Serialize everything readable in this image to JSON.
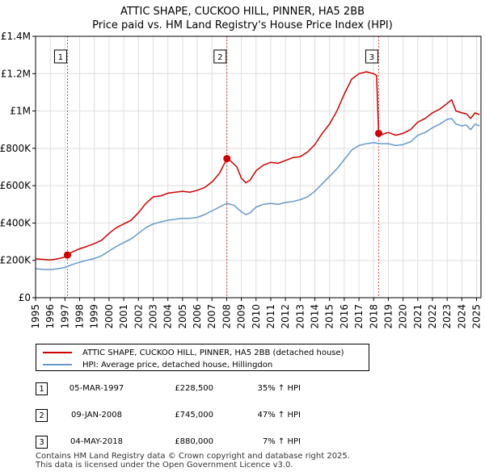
{
  "title": {
    "line1": "ATTIC SHAPE, CUCKOO HILL, PINNER, HA5 2BB",
    "line2": "Price paid vs. HM Land Registry's House Price Index (HPI)"
  },
  "chart_data": {
    "type": "line",
    "title": "ATTIC SHAPE, CUCKOO HILL, PINNER, HA5 2BB — Price paid vs. HM Land Registry's House Price Index (HPI)",
    "xlim": [
      1995,
      2025.3
    ],
    "ylim": [
      0,
      1400000
    ],
    "x_ticks": [
      1995,
      1996,
      1997,
      1998,
      1999,
      2000,
      2001,
      2002,
      2003,
      2004,
      2005,
      2006,
      2007,
      2008,
      2009,
      2010,
      2011,
      2012,
      2013,
      2014,
      2015,
      2016,
      2017,
      2018,
      2019,
      2020,
      2021,
      2022,
      2023,
      2024,
      2025
    ],
    "y_ticks": [
      {
        "value": 0,
        "label": "£0"
      },
      {
        "value": 200000,
        "label": "£200K"
      },
      {
        "value": 400000,
        "label": "£400K"
      },
      {
        "value": 600000,
        "label": "£600K"
      },
      {
        "value": 800000,
        "label": "£800K"
      },
      {
        "value": 1000000,
        "label": "£1M"
      },
      {
        "value": 1200000,
        "label": "£1.2M"
      },
      {
        "value": 1400000,
        "label": "£1.4M"
      }
    ],
    "grid": true,
    "series": [
      {
        "name": "ATTIC SHAPE, CUCKOO HILL, PINNER, HA5 2BB (detached house)",
        "color": "#cc0000",
        "points": [
          [
            1995.0,
            208000
          ],
          [
            1995.5,
            205000
          ],
          [
            1996.0,
            202000
          ],
          [
            1996.5,
            208000
          ],
          [
            1997.0,
            218000
          ],
          [
            1997.17,
            228500
          ],
          [
            1997.5,
            245000
          ],
          [
            1998.0,
            262000
          ],
          [
            1998.5,
            275000
          ],
          [
            1999.0,
            290000
          ],
          [
            1999.5,
            308000
          ],
          [
            2000.0,
            345000
          ],
          [
            2000.5,
            375000
          ],
          [
            2001.0,
            395000
          ],
          [
            2001.5,
            415000
          ],
          [
            2002.0,
            455000
          ],
          [
            2002.5,
            505000
          ],
          [
            2003.0,
            540000
          ],
          [
            2003.5,
            545000
          ],
          [
            2004.0,
            560000
          ],
          [
            2004.5,
            565000
          ],
          [
            2005.0,
            570000
          ],
          [
            2005.5,
            565000
          ],
          [
            2006.0,
            575000
          ],
          [
            2006.5,
            590000
          ],
          [
            2007.0,
            620000
          ],
          [
            2007.5,
            665000
          ],
          [
            2008.02,
            745000
          ],
          [
            2008.3,
            730000
          ],
          [
            2008.7,
            700000
          ],
          [
            2009.0,
            640000
          ],
          [
            2009.3,
            615000
          ],
          [
            2009.6,
            630000
          ],
          [
            2010.0,
            680000
          ],
          [
            2010.5,
            710000
          ],
          [
            2011.0,
            725000
          ],
          [
            2011.5,
            720000
          ],
          [
            2012.0,
            735000
          ],
          [
            2012.5,
            750000
          ],
          [
            2013.0,
            755000
          ],
          [
            2013.5,
            780000
          ],
          [
            2014.0,
            820000
          ],
          [
            2014.5,
            880000
          ],
          [
            2015.0,
            930000
          ],
          [
            2015.5,
            1000000
          ],
          [
            2016.0,
            1090000
          ],
          [
            2016.5,
            1170000
          ],
          [
            2017.0,
            1200000
          ],
          [
            2017.5,
            1210000
          ],
          [
            2018.0,
            1200000
          ],
          [
            2018.2,
            1190000
          ],
          [
            2018.34,
            880000
          ],
          [
            2018.6,
            875000
          ],
          [
            2019.0,
            885000
          ],
          [
            2019.5,
            870000
          ],
          [
            2020.0,
            880000
          ],
          [
            2020.5,
            900000
          ],
          [
            2021.0,
            940000
          ],
          [
            2021.5,
            960000
          ],
          [
            2022.0,
            990000
          ],
          [
            2022.5,
            1010000
          ],
          [
            2023.0,
            1040000
          ],
          [
            2023.3,
            1060000
          ],
          [
            2023.6,
            1000000
          ],
          [
            2024.0,
            990000
          ],
          [
            2024.3,
            985000
          ],
          [
            2024.6,
            960000
          ],
          [
            2024.9,
            990000
          ],
          [
            2025.2,
            980000
          ]
        ]
      },
      {
        "name": "HPI: Average price, detached house, Hillingdon",
        "color": "#6699cc",
        "points": [
          [
            1995.0,
            155000
          ],
          [
            1995.5,
            152000
          ],
          [
            1996.0,
            150000
          ],
          [
            1996.5,
            155000
          ],
          [
            1997.0,
            162000
          ],
          [
            1997.5,
            178000
          ],
          [
            1998.0,
            190000
          ],
          [
            1998.5,
            200000
          ],
          [
            1999.0,
            210000
          ],
          [
            1999.5,
            225000
          ],
          [
            2000.0,
            250000
          ],
          [
            2000.5,
            275000
          ],
          [
            2001.0,
            295000
          ],
          [
            2001.5,
            315000
          ],
          [
            2002.0,
            345000
          ],
          [
            2002.5,
            375000
          ],
          [
            2003.0,
            395000
          ],
          [
            2003.5,
            405000
          ],
          [
            2004.0,
            415000
          ],
          [
            2004.5,
            420000
          ],
          [
            2005.0,
            425000
          ],
          [
            2005.5,
            425000
          ],
          [
            2006.0,
            430000
          ],
          [
            2006.5,
            445000
          ],
          [
            2007.0,
            465000
          ],
          [
            2007.5,
            485000
          ],
          [
            2008.0,
            505000
          ],
          [
            2008.5,
            495000
          ],
          [
            2009.0,
            460000
          ],
          [
            2009.3,
            445000
          ],
          [
            2009.6,
            455000
          ],
          [
            2010.0,
            485000
          ],
          [
            2010.5,
            500000
          ],
          [
            2011.0,
            505000
          ],
          [
            2011.5,
            500000
          ],
          [
            2012.0,
            510000
          ],
          [
            2012.5,
            515000
          ],
          [
            2013.0,
            525000
          ],
          [
            2013.5,
            540000
          ],
          [
            2014.0,
            570000
          ],
          [
            2014.5,
            610000
          ],
          [
            2015.0,
            650000
          ],
          [
            2015.5,
            690000
          ],
          [
            2016.0,
            740000
          ],
          [
            2016.5,
            790000
          ],
          [
            2017.0,
            815000
          ],
          [
            2017.5,
            825000
          ],
          [
            2018.0,
            830000
          ],
          [
            2018.5,
            825000
          ],
          [
            2019.0,
            825000
          ],
          [
            2019.5,
            815000
          ],
          [
            2020.0,
            820000
          ],
          [
            2020.5,
            835000
          ],
          [
            2021.0,
            870000
          ],
          [
            2021.5,
            885000
          ],
          [
            2022.0,
            910000
          ],
          [
            2022.5,
            930000
          ],
          [
            2023.0,
            955000
          ],
          [
            2023.3,
            960000
          ],
          [
            2023.6,
            930000
          ],
          [
            2024.0,
            920000
          ],
          [
            2024.3,
            925000
          ],
          [
            2024.6,
            900000
          ],
          [
            2024.9,
            930000
          ],
          [
            2025.2,
            920000
          ]
        ]
      }
    ],
    "sale_markers": [
      {
        "label": "1",
        "x": 1997.17,
        "y": 228500
      },
      {
        "label": "2",
        "x": 2008.02,
        "y": 745000
      },
      {
        "label": "3",
        "x": 2018.34,
        "y": 880000
      }
    ]
  },
  "legend": {
    "property_label": "ATTIC SHAPE, CUCKOO HILL, PINNER, HA5 2BB (detached house)",
    "hpi_label": "HPI: Average price, detached house, Hillingdon"
  },
  "sales": [
    {
      "num": "1",
      "date": "05-MAR-1997",
      "price": "£228,500",
      "hpi": "35% ↑ HPI"
    },
    {
      "num": "2",
      "date": "09-JAN-2008",
      "price": "£745,000",
      "hpi": "47% ↑ HPI"
    },
    {
      "num": "3",
      "date": "04-MAY-2018",
      "price": "£880,000",
      "hpi": "7% ↑ HPI"
    }
  ],
  "footer": {
    "line1": "Contains HM Land Registry data © Crown copyright and database right 2025.",
    "line2": "This data is licensed under the Open Government Licence v3.0."
  }
}
